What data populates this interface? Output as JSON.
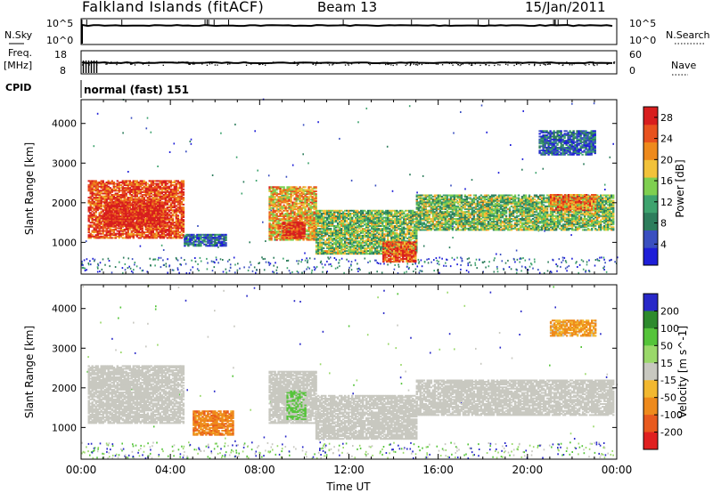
{
  "header": {
    "station": "Falkland Islands (fitACF)",
    "beam": "Beam 13",
    "date": "15/Jan/2011"
  },
  "top_panels": {
    "nsky_label": "N.Sky",
    "nsky_top_tick": "10^5",
    "nsky_bottom_tick": "10^0",
    "nsearch_label": "N.Search",
    "nsearch_top_tick": "10^5",
    "nsearch_bottom_tick": "10^0",
    "freq_label": "Freq.",
    "freq_unit": "[MHz]",
    "freq_top_tick": "18",
    "freq_bottom_tick": "8",
    "nave_label": "Nave",
    "nave_top_tick": "60",
    "nave_bottom_tick": "0",
    "cpid_label": "CPID",
    "cpid_text": "normal (fast) 151"
  },
  "colors": {
    "power_scale": [
      "#1e1ed8",
      "#3a4fc0",
      "#2d7d5c",
      "#3ea36e",
      "#7fcf50",
      "#f2c23a",
      "#ee8a1c",
      "#e8521e",
      "#d81e1e"
    ],
    "velocity_scale": [
      "#2828c8",
      "#2d8a2d",
      "#55c43a",
      "#9ad86a",
      "#c8c8c0",
      "#f2b830",
      "#ee8a1c",
      "#e85a1e",
      "#e02020"
    ],
    "ground_scatter": "#c8c8c0"
  },
  "chart_data": [
    {
      "type": "heatmap",
      "title": "",
      "xlabel": "",
      "ylabel": "Slant Range [km]",
      "xlim": [
        "00:00",
        "24:00"
      ],
      "ylim": [
        200,
        4600
      ],
      "yticks": [
        "1000",
        "2000",
        "3000",
        "4000"
      ],
      "colorbar": {
        "label": "Power [dB]",
        "ticks": [
          "4",
          "8",
          "12",
          "16",
          "20",
          "24",
          "28"
        ],
        "range": [
          0,
          30
        ]
      },
      "regions": [
        {
          "t": [
            0.3,
            4.6
          ],
          "r": [
            1100,
            2550
          ],
          "level": 26
        },
        {
          "t": [
            1.0,
            3.8
          ],
          "r": [
            1400,
            2000
          ],
          "level": 29
        },
        {
          "t": [
            4.6,
            6.5
          ],
          "r": [
            900,
            1200
          ],
          "level": 6
        },
        {
          "t": [
            8.4,
            10.5
          ],
          "r": [
            1050,
            2400
          ],
          "level": 20
        },
        {
          "t": [
            9.0,
            10.0
          ],
          "r": [
            1100,
            1500
          ],
          "level": 28
        },
        {
          "t": [
            10.5,
            15.0
          ],
          "r": [
            700,
            1800
          ],
          "level": 14
        },
        {
          "t": [
            13.5,
            15.0
          ],
          "r": [
            500,
            1000
          ],
          "level": 26
        },
        {
          "t": [
            15.0,
            23.8
          ],
          "r": [
            1300,
            2200
          ],
          "level": 14
        },
        {
          "t": [
            21.0,
            23.0
          ],
          "r": [
            1800,
            2200
          ],
          "level": 22
        },
        {
          "t": [
            20.5,
            23.0
          ],
          "r": [
            3200,
            3800
          ],
          "level": 6
        }
      ]
    },
    {
      "type": "heatmap",
      "title": "",
      "xlabel": "Time UT",
      "ylabel": "Slant Range [km]",
      "xlim": [
        "00:00",
        "24:00"
      ],
      "ylim": [
        200,
        4600
      ],
      "xticks": [
        "00:00",
        "04:00",
        "08:00",
        "12:00",
        "16:00",
        "20:00",
        "00:00"
      ],
      "yticks": [
        "1000",
        "2000",
        "3000",
        "4000"
      ],
      "colorbar": {
        "label": "Velocity [m s^-1]",
        "ticks": [
          "200",
          "100",
          "50",
          "15",
          "-15",
          "-50",
          "-100",
          "-200"
        ],
        "range": [
          -200,
          200
        ]
      },
      "regions": [
        {
          "t": [
            0.3,
            4.6
          ],
          "r": [
            1100,
            2550
          ],
          "v": 0,
          "ground_scatter": true
        },
        {
          "t": [
            5.0,
            6.8
          ],
          "r": [
            800,
            1400
          ],
          "v": -60
        },
        {
          "t": [
            8.4,
            10.5
          ],
          "r": [
            1100,
            2400
          ],
          "v": 0,
          "ground_scatter": true
        },
        {
          "t": [
            9.2,
            10.0
          ],
          "r": [
            1200,
            1900
          ],
          "v": 40
        },
        {
          "t": [
            10.5,
            15.0
          ],
          "r": [
            700,
            1800
          ],
          "v": 0,
          "ground_scatter": true
        },
        {
          "t": [
            15.0,
            23.8
          ],
          "r": [
            1300,
            2200
          ],
          "v": 0,
          "ground_scatter": true
        },
        {
          "t": [
            21.0,
            23.0
          ],
          "r": [
            3300,
            3700
          ],
          "v": -40
        }
      ]
    }
  ]
}
